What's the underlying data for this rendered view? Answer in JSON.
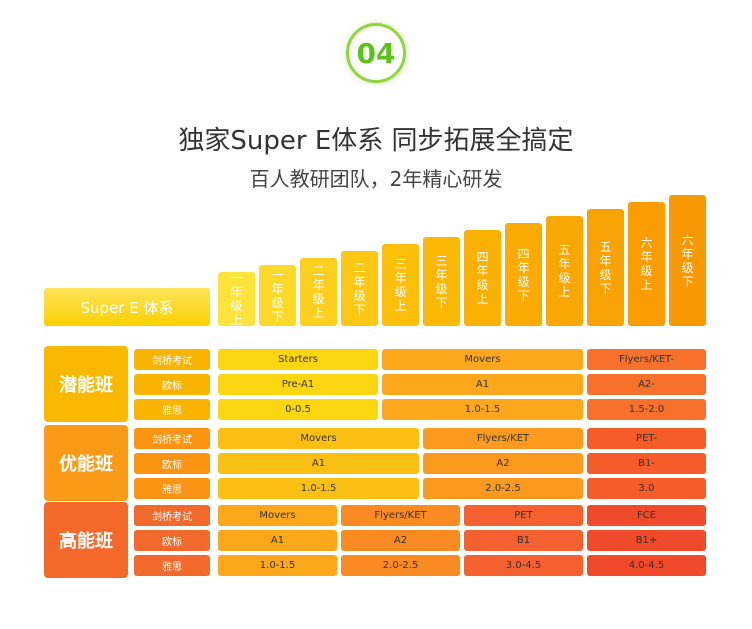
{
  "badge": "04",
  "title": "独家Super E体系 同步拓展全搞定",
  "subtitle": "百人教研团队，2年精心研发",
  "system_label": "Super E 体系",
  "grades": [
    "一年级上",
    "一年级下",
    "二年级上",
    "二年级下",
    "三年级上",
    "三年级下",
    "四年级上",
    "四年级下",
    "五年级上",
    "五年级下",
    "六年级上",
    "六年级下"
  ],
  "groups": [
    {
      "name": "潜能班",
      "row_labels": [
        "剑桥考试",
        "欧标",
        "雅思"
      ],
      "cells": [
        [
          "Starters",
          "Movers",
          "Flyers/KET-"
        ],
        [
          "Pre-A1",
          "A1",
          "A2-"
        ],
        [
          "0-0.5",
          "1.0-1.5",
          "1.5-2.0"
        ]
      ]
    },
    {
      "name": "优能班",
      "row_labels": [
        "剑桥考试",
        "欧标",
        "雅思"
      ],
      "cells": [
        [
          "Movers",
          "Flyers/KET",
          "PET-"
        ],
        [
          "A1",
          "A2",
          "B1-"
        ],
        [
          "1.0-1.5",
          "2.0-2.5",
          "3.0"
        ]
      ]
    },
    {
      "name": "高能班",
      "row_labels": [
        "剑桥考试",
        "欧标",
        "雅思"
      ],
      "cells": [
        [
          "Movers",
          "Flyers/KET",
          "PET",
          "FCE"
        ],
        [
          "A1",
          "A2",
          "B1",
          "B1+"
        ],
        [
          "1.0-1.5",
          "2.0-2.5",
          "3.0-4.5",
          "4.0-4.5"
        ]
      ]
    }
  ]
}
